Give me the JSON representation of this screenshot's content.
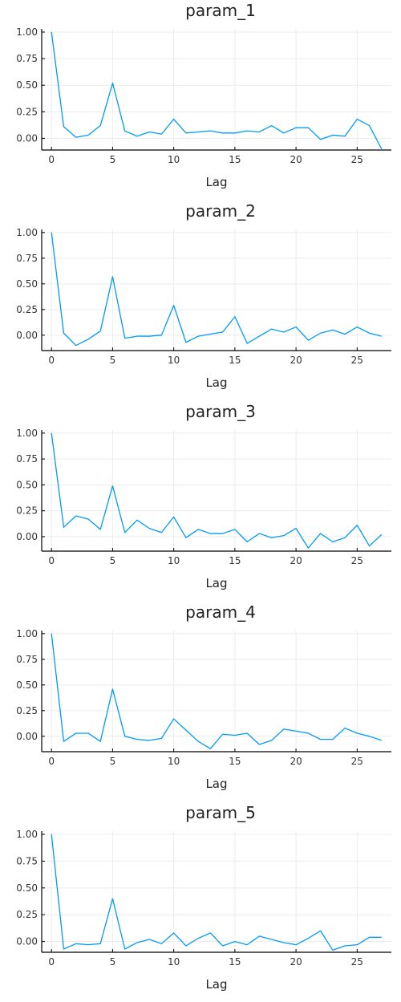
{
  "style": {
    "line_color": "#009AFA"
  },
  "chart_data": [
    {
      "type": "line",
      "title": "param_1",
      "xlabel": "Lag",
      "ylabel": "",
      "xlim": [
        -0.8,
        27.8
      ],
      "ylim": [
        -0.11,
        1.03
      ],
      "xticks": [
        0,
        5,
        10,
        15,
        20,
        25
      ],
      "xtick_labels": [
        "0",
        "5",
        "10",
        "15",
        "20",
        "25"
      ],
      "yticks": [
        0.0,
        0.25,
        0.5,
        0.75,
        1.0
      ],
      "ytick_labels": [
        "0.00",
        "0.25",
        "0.50",
        "0.75",
        "1.00"
      ],
      "grid": true,
      "series": [
        {
          "name": "param_1",
          "x": [
            0,
            1,
            2,
            3,
            4,
            5,
            6,
            7,
            8,
            9,
            10,
            11,
            12,
            13,
            14,
            15,
            16,
            17,
            18,
            19,
            20,
            21,
            22,
            23,
            24,
            25,
            26,
            27
          ],
          "y": [
            1.0,
            0.11,
            0.01,
            0.03,
            0.12,
            0.52,
            0.07,
            0.02,
            0.06,
            0.04,
            0.18,
            0.05,
            0.06,
            0.07,
            0.05,
            0.05,
            0.07,
            0.06,
            0.12,
            0.05,
            0.1,
            0.1,
            -0.01,
            0.03,
            0.02,
            0.18,
            0.12,
            -0.1
          ]
        }
      ]
    },
    {
      "type": "line",
      "title": "param_2",
      "xlabel": "Lag",
      "ylabel": "",
      "xlim": [
        -0.8,
        27.8
      ],
      "ylim": [
        -0.15,
        1.03
      ],
      "xticks": [
        0,
        5,
        10,
        15,
        20,
        25
      ],
      "xtick_labels": [
        "0",
        "5",
        "10",
        "15",
        "20",
        "25"
      ],
      "yticks": [
        0.0,
        0.25,
        0.5,
        0.75,
        1.0
      ],
      "ytick_labels": [
        "0.00",
        "0.25",
        "0.50",
        "0.75",
        "1.00"
      ],
      "grid": true,
      "series": [
        {
          "name": "param_2",
          "x": [
            0,
            1,
            2,
            3,
            4,
            5,
            6,
            7,
            8,
            9,
            10,
            11,
            12,
            13,
            14,
            15,
            16,
            17,
            18,
            19,
            20,
            21,
            22,
            23,
            24,
            25,
            26,
            27
          ],
          "y": [
            1.0,
            0.02,
            -0.1,
            -0.04,
            0.04,
            0.57,
            -0.03,
            -0.01,
            -0.01,
            0.0,
            0.29,
            -0.07,
            -0.01,
            0.01,
            0.03,
            0.18,
            -0.08,
            -0.01,
            0.06,
            0.03,
            0.08,
            -0.05,
            0.02,
            0.05,
            0.01,
            0.08,
            0.02,
            -0.01
          ]
        }
      ]
    },
    {
      "type": "line",
      "title": "param_3",
      "xlabel": "Lag",
      "ylabel": "",
      "xlim": [
        -0.8,
        27.8
      ],
      "ylim": [
        -0.14,
        1.03
      ],
      "xticks": [
        0,
        5,
        10,
        15,
        20,
        25
      ],
      "xtick_labels": [
        "0",
        "5",
        "10",
        "15",
        "20",
        "25"
      ],
      "yticks": [
        0.0,
        0.25,
        0.5,
        0.75,
        1.0
      ],
      "ytick_labels": [
        "0.00",
        "0.25",
        "0.50",
        "0.75",
        "1.00"
      ],
      "grid": true,
      "series": [
        {
          "name": "param_3",
          "x": [
            0,
            1,
            2,
            3,
            4,
            5,
            6,
            7,
            8,
            9,
            10,
            11,
            12,
            13,
            14,
            15,
            16,
            17,
            18,
            19,
            20,
            21,
            22,
            23,
            24,
            25,
            26,
            27
          ],
          "y": [
            1.0,
            0.09,
            0.2,
            0.17,
            0.07,
            0.49,
            0.04,
            0.16,
            0.08,
            0.04,
            0.19,
            -0.01,
            0.07,
            0.03,
            0.03,
            0.07,
            -0.05,
            0.03,
            -0.01,
            0.01,
            0.08,
            -0.11,
            0.03,
            -0.05,
            -0.01,
            0.11,
            -0.09,
            0.02
          ]
        }
      ]
    },
    {
      "type": "line",
      "title": "param_4",
      "xlabel": "Lag",
      "ylabel": "",
      "xlim": [
        -0.8,
        27.8
      ],
      "ylim": [
        -0.15,
        1.03
      ],
      "xticks": [
        0,
        5,
        10,
        15,
        20,
        25
      ],
      "xtick_labels": [
        "0",
        "5",
        "10",
        "15",
        "20",
        "25"
      ],
      "yticks": [
        0.0,
        0.25,
        0.5,
        0.75,
        1.0
      ],
      "ytick_labels": [
        "0.00",
        "0.25",
        "0.50",
        "0.75",
        "1.00"
      ],
      "grid": true,
      "series": [
        {
          "name": "param_4",
          "x": [
            0,
            1,
            2,
            3,
            4,
            5,
            6,
            7,
            8,
            9,
            10,
            11,
            12,
            13,
            14,
            15,
            16,
            17,
            18,
            19,
            20,
            21,
            22,
            23,
            24,
            25,
            26,
            27
          ],
          "y": [
            1.0,
            -0.05,
            0.03,
            0.03,
            -0.05,
            0.46,
            0.0,
            -0.03,
            -0.04,
            -0.02,
            0.17,
            0.06,
            -0.05,
            -0.12,
            0.02,
            0.01,
            0.03,
            -0.08,
            -0.04,
            0.07,
            0.05,
            0.03,
            -0.03,
            -0.03,
            0.08,
            0.03,
            0.0,
            -0.04
          ]
        }
      ]
    },
    {
      "type": "line",
      "title": "param_5",
      "xlabel": "Lag",
      "ylabel": "",
      "xlim": [
        -0.8,
        27.8
      ],
      "ylim": [
        -0.1,
        1.03
      ],
      "xticks": [
        0,
        5,
        10,
        15,
        20,
        25
      ],
      "xtick_labels": [
        "0",
        "5",
        "10",
        "15",
        "20",
        "25"
      ],
      "yticks": [
        0.0,
        0.25,
        0.5,
        0.75,
        1.0
      ],
      "ytick_labels": [
        "0.00",
        "0.25",
        "0.50",
        "0.75",
        "1.00"
      ],
      "grid": true,
      "series": [
        {
          "name": "param_5",
          "x": [
            0,
            1,
            2,
            3,
            4,
            5,
            6,
            7,
            8,
            9,
            10,
            11,
            12,
            13,
            14,
            15,
            16,
            17,
            18,
            19,
            20,
            21,
            22,
            23,
            24,
            25,
            26,
            27
          ],
          "y": [
            1.0,
            -0.07,
            -0.02,
            -0.03,
            -0.02,
            0.4,
            -0.07,
            -0.01,
            0.02,
            -0.02,
            0.08,
            -0.04,
            0.03,
            0.08,
            -0.04,
            0.0,
            -0.03,
            0.05,
            0.02,
            -0.01,
            -0.03,
            0.03,
            0.1,
            -0.08,
            -0.04,
            -0.03,
            0.04,
            0.04
          ]
        }
      ]
    }
  ]
}
